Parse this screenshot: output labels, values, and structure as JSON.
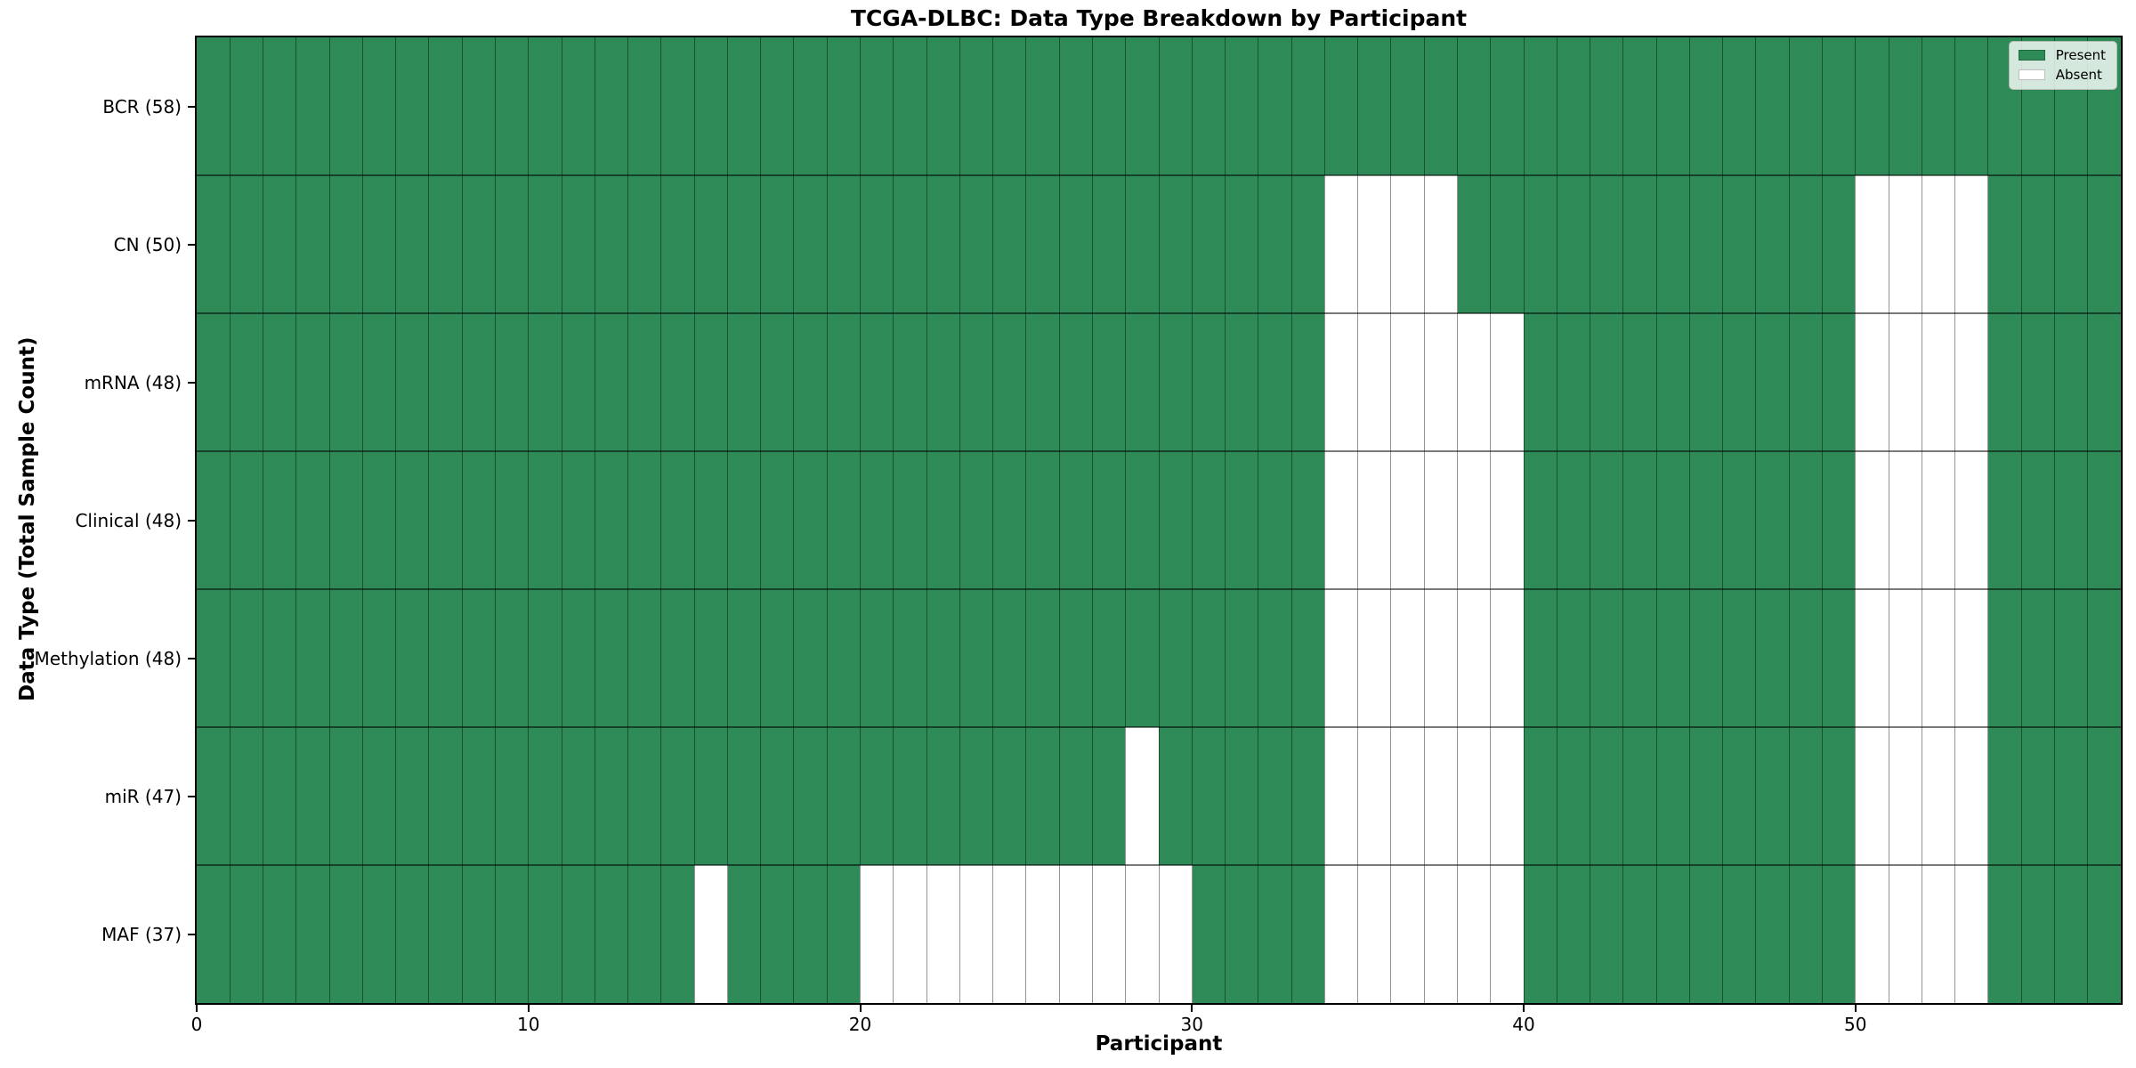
{
  "title": "TCGA-DLBC: Data Type Breakdown by Participant",
  "xlabel": "Participant",
  "ylabel": "Data Type (Total Sample Count)",
  "legend": {
    "present_label": "Present",
    "absent_label": "Absent"
  },
  "colors": {
    "present": "#2e8b57",
    "absent": "#ffffff"
  },
  "chart_data": {
    "type": "heatmap",
    "title": "TCGA-DLBC: Data Type Breakdown by Participant",
    "xlabel": "Participant",
    "ylabel": "Data Type (Total Sample Count)",
    "x_ticks": [
      0,
      10,
      20,
      30,
      40,
      50
    ],
    "x_range": [
      0,
      58
    ],
    "n_participants": 58,
    "legend_entries": [
      "Present",
      "Absent"
    ],
    "legend_position": "upper right",
    "rows": [
      {
        "label": "BCR (58)",
        "present_count": 58,
        "absent_participants": []
      },
      {
        "label": "CN (50)",
        "present_count": 50,
        "absent_participants": [
          34,
          35,
          36,
          37,
          50,
          51,
          52,
          53
        ]
      },
      {
        "label": "mRNA (48)",
        "present_count": 48,
        "absent_participants": [
          34,
          35,
          36,
          37,
          38,
          39,
          50,
          51,
          52,
          53
        ]
      },
      {
        "label": "Clinical (48)",
        "present_count": 48,
        "absent_participants": [
          34,
          35,
          36,
          37,
          38,
          39,
          50,
          51,
          52,
          53
        ]
      },
      {
        "label": "Methylation (48)",
        "present_count": 48,
        "absent_participants": [
          34,
          35,
          36,
          37,
          38,
          39,
          50,
          51,
          52,
          53
        ]
      },
      {
        "label": "miR (47)",
        "present_count": 47,
        "absent_participants": [
          28,
          34,
          35,
          36,
          37,
          38,
          39,
          50,
          51,
          52,
          53
        ]
      },
      {
        "label": "MAF (37)",
        "present_count": 37,
        "absent_participants": [
          15,
          20,
          21,
          22,
          23,
          24,
          25,
          26,
          27,
          28,
          29,
          34,
          35,
          36,
          37,
          38,
          39,
          50,
          51,
          52,
          53
        ]
      }
    ]
  }
}
